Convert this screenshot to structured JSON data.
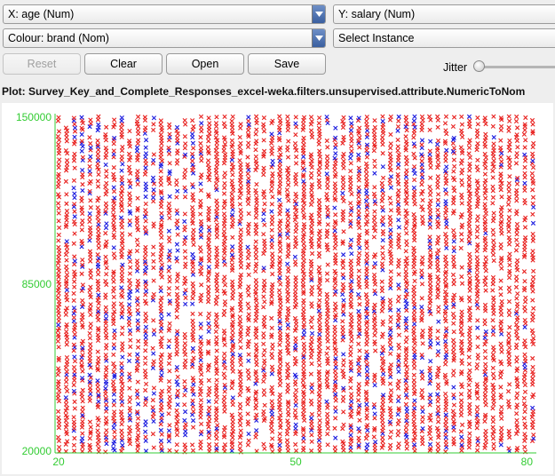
{
  "controls": {
    "x_axis": "X: age (Num)",
    "y_axis": "Y: salary (Num)",
    "colour": "Colour: brand (Nom)",
    "select_instance": "Select Instance",
    "reset_label": "Reset",
    "clear_label": "Clear",
    "open_label": "Open",
    "save_label": "Save",
    "jitter_label": "Jitter",
    "jitter_value": 0
  },
  "plot": {
    "title": "Plot: Survey_Key_and_Complete_Responses_excel-weka.filters.unsupervised.attribute.NumericToNom"
  },
  "colors": {
    "brand_a": "#e8201e",
    "brand_b": "#1a1adf",
    "axis": "#33cc33",
    "background": "#ffffff"
  },
  "chart_data": {
    "type": "scatter",
    "title": "",
    "xlabel": "",
    "ylabel": "",
    "x_ticks": [
      "20",
      "50",
      "80"
    ],
    "y_ticks": [
      "150000",
      "85000",
      "20000"
    ],
    "xlim": [
      20,
      80
    ],
    "ylim": [
      20000,
      150000
    ],
    "marker": "x",
    "series": [
      {
        "color": "#e8201e"
      },
      {
        "color": "#1a1adf"
      }
    ],
    "note_density": "many points at every integer age from 20 to 80 spread across salary range"
  }
}
